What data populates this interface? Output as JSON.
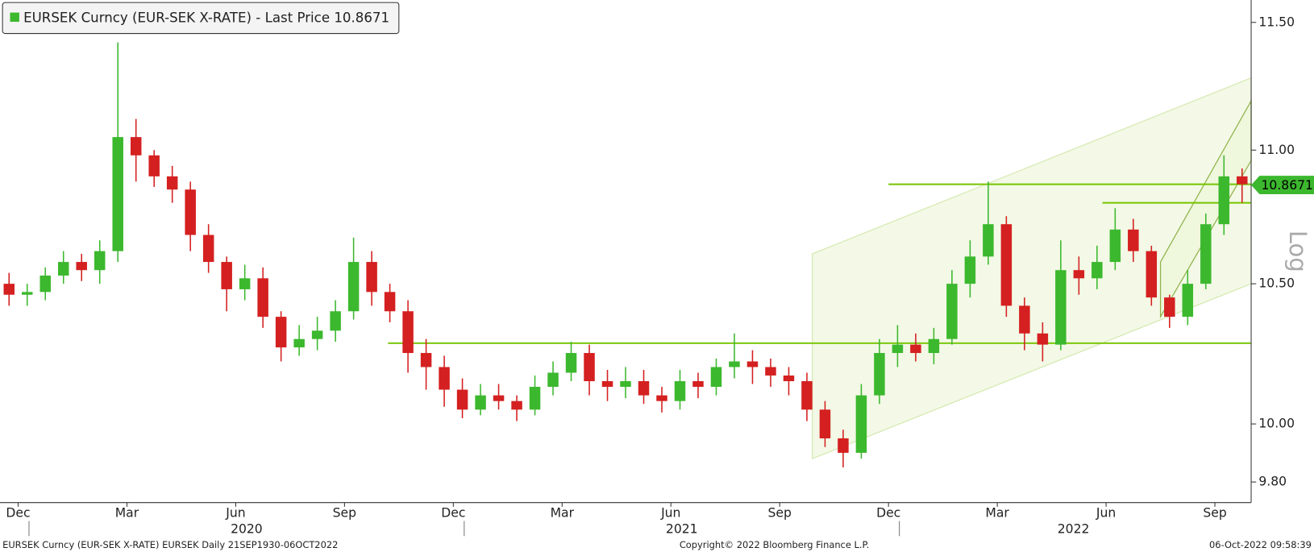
{
  "chart_data": {
    "type": "candlestick",
    "title": "EURSEK Curncy (EUR-SEK X-RATE) - Last Price 10.8671",
    "last_price": 10.8671,
    "scale_label": "Log",
    "log_scale": true,
    "up_color": "#3cb82e",
    "down_color": "#d42020",
    "line_color": "#7cc70c",
    "channel_color": "#eef6dc",
    "open": [
      10.5,
      10.46,
      10.47,
      10.53,
      10.58,
      10.55,
      10.62,
      11.05,
      10.98,
      10.9,
      10.85,
      10.68,
      10.58,
      10.48,
      10.52,
      10.38,
      10.27,
      10.3,
      10.33,
      10.4,
      10.58,
      10.47,
      10.4,
      10.25,
      10.2,
      10.12,
      10.05,
      10.1,
      10.08,
      10.05,
      10.13,
      10.18,
      10.25,
      10.15,
      10.13,
      10.15,
      10.1,
      10.08,
      10.15,
      10.13,
      10.2,
      10.22,
      10.2,
      10.17,
      10.15,
      10.05,
      9.95,
      9.9,
      10.1,
      10.25,
      10.28,
      10.25,
      10.3,
      10.5,
      10.6,
      10.72,
      10.42,
      10.32,
      10.28,
      10.55,
      10.52,
      10.58,
      10.7,
      10.62,
      10.45,
      10.38,
      10.5,
      10.72,
      10.9
    ],
    "high": [
      10.54,
      10.5,
      10.56,
      10.62,
      10.61,
      10.66,
      11.42,
      11.12,
      11.0,
      10.94,
      10.88,
      10.72,
      10.6,
      10.57,
      10.56,
      10.4,
      10.35,
      10.38,
      10.44,
      10.67,
      10.62,
      10.5,
      10.44,
      10.3,
      10.24,
      10.16,
      10.14,
      10.14,
      10.1,
      10.17,
      10.22,
      10.29,
      10.28,
      10.19,
      10.2,
      10.19,
      10.13,
      10.19,
      10.18,
      10.23,
      10.32,
      10.26,
      10.23,
      10.2,
      10.18,
      10.08,
      9.98,
      10.14,
      10.3,
      10.35,
      10.32,
      10.34,
      10.55,
      10.66,
      10.88,
      10.75,
      10.45,
      10.36,
      10.66,
      10.6,
      10.64,
      10.78,
      10.74,
      10.64,
      10.46,
      10.55,
      10.76,
      10.98,
      10.93
    ],
    "low": [
      10.42,
      10.42,
      10.44,
      10.5,
      10.51,
      10.5,
      10.58,
      10.88,
      10.86,
      10.8,
      10.62,
      10.54,
      10.4,
      10.44,
      10.34,
      10.22,
      10.24,
      10.26,
      10.29,
      10.37,
      10.42,
      10.36,
      10.18,
      10.12,
      10.06,
      10.02,
      10.03,
      10.05,
      10.01,
      10.03,
      10.1,
      10.15,
      10.1,
      10.08,
      10.09,
      10.07,
      10.04,
      10.05,
      10.09,
      10.1,
      10.16,
      10.14,
      10.13,
      10.1,
      10.01,
      9.92,
      9.85,
      9.88,
      10.07,
      10.2,
      10.22,
      10.21,
      10.28,
      10.45,
      10.57,
      10.38,
      10.26,
      10.22,
      10.26,
      10.46,
      10.48,
      10.55,
      10.58,
      10.42,
      10.34,
      10.35,
      10.48,
      10.68,
      10.8
    ],
    "close": [
      10.46,
      10.47,
      10.53,
      10.58,
      10.55,
      10.62,
      11.05,
      10.98,
      10.9,
      10.85,
      10.68,
      10.58,
      10.48,
      10.52,
      10.38,
      10.27,
      10.3,
      10.33,
      10.4,
      10.58,
      10.47,
      10.4,
      10.25,
      10.2,
      10.12,
      10.05,
      10.1,
      10.08,
      10.05,
      10.13,
      10.18,
      10.25,
      10.15,
      10.13,
      10.15,
      10.1,
      10.08,
      10.15,
      10.13,
      10.2,
      10.22,
      10.2,
      10.17,
      10.15,
      10.05,
      9.95,
      9.9,
      10.1,
      10.25,
      10.28,
      10.25,
      10.3,
      10.5,
      10.6,
      10.72,
      10.42,
      10.32,
      10.28,
      10.55,
      10.52,
      10.58,
      10.7,
      10.62,
      10.45,
      10.38,
      10.5,
      10.72,
      10.9,
      10.87
    ],
    "xlim": [
      0,
      34.5
    ],
    "ylim": [
      9.73,
      11.59
    ],
    "yticks": [
      {
        "value": 9.8,
        "label": "9.80"
      },
      {
        "value": 10,
        "label": "10.00"
      },
      {
        "value": 10.5,
        "label": "10.50"
      },
      {
        "value": 11,
        "label": "11.00"
      },
      {
        "value": 11.5,
        "label": "11.50"
      }
    ],
    "xticks": [
      {
        "value": 0.5,
        "label": "Dec"
      },
      {
        "value": 3.5,
        "label": "Mar"
      },
      {
        "value": 6.5,
        "label": "Jun"
      },
      {
        "value": 9.5,
        "label": "Sep"
      },
      {
        "value": 12.5,
        "label": "Dec"
      },
      {
        "value": 15.5,
        "label": "Mar"
      },
      {
        "value": 18.5,
        "label": "Jun"
      },
      {
        "value": 21.5,
        "label": "Sep"
      },
      {
        "value": 24.5,
        "label": "Dec"
      },
      {
        "value": 27.5,
        "label": "Mar"
      },
      {
        "value": 30.5,
        "label": "Jun"
      },
      {
        "value": 33.5,
        "label": "Sep"
      }
    ],
    "year_ticks": [
      {
        "value": 6.8,
        "label": "2020"
      },
      {
        "value": 18.8,
        "label": "2021"
      },
      {
        "value": 29.6,
        "label": "2022"
      }
    ],
    "year_separators": [
      0.8,
      12.8,
      24.8
    ],
    "hlines": [
      {
        "value": 10.285,
        "from": 10.7
      },
      {
        "value": 10.87,
        "from": 24.5
      },
      {
        "value": 10.8,
        "from": 30.4
      }
    ],
    "channels": [
      {
        "x": [
          22.4,
          34.5
        ],
        "upper": [
          10.61,
          11.28
        ],
        "lower": [
          9.88,
          10.5
        ]
      },
      {
        "x": [
          32.0,
          34.5
        ],
        "upper": [
          10.58,
          11.19
        ],
        "lower": [
          10.38,
          10.96
        ]
      }
    ],
    "footer_left": "EURSEK Curncy (EUR-SEK X-RATE) EURSEK  Daily 21SEP1930-06OCT2022",
    "footer_center": "Copyright© 2022 Bloomberg Finance L.P.",
    "footer_right": "06-Oct-2022 09:58:39"
  }
}
